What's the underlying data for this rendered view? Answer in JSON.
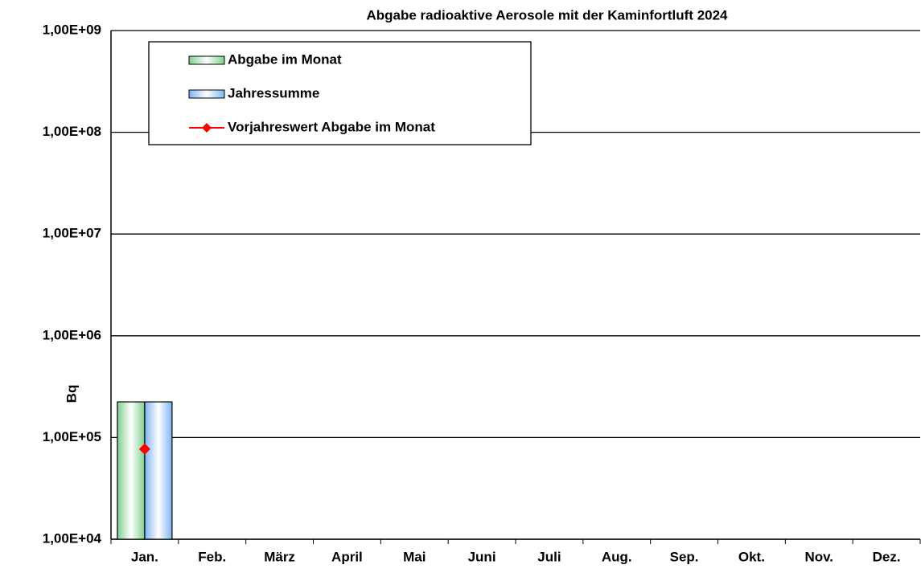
{
  "chart_data": {
    "type": "bar",
    "title": "Abgabe radioaktive Aerosole mit der Kaminfortluft 2024",
    "y_label": "Bq",
    "log_scale": true,
    "grid": true,
    "legend": "top-left",
    "categories": [
      "Jan.",
      "Feb.",
      "März",
      "April",
      "Mai",
      "Juni",
      "Juli",
      "Aug.",
      "Sep.",
      "Okt.",
      "Nov.",
      "Dez."
    ],
    "series": [
      {
        "name": "Abgabe im Monat",
        "type": "bar",
        "color": "#7fcf8f",
        "values": [
          224000,
          null,
          null,
          null,
          null,
          null,
          null,
          null,
          null,
          null,
          null,
          null
        ]
      },
      {
        "name": "Jahressumme",
        "type": "bar",
        "color": "#7fb4f0",
        "values": [
          224000,
          null,
          null,
          null,
          null,
          null,
          null,
          null,
          null,
          null,
          null,
          null
        ]
      },
      {
        "name": "Vorjahreswert Abgabe im Monat",
        "type": "line",
        "color": "#ff0000",
        "values": [
          77000,
          null,
          null,
          null,
          null,
          null,
          null,
          null,
          null,
          null,
          null,
          null
        ]
      }
    ],
    "ylim": [
      10000,
      1000000000
    ],
    "yticks": [
      {
        "value": 10000,
        "label": "1,00E+04"
      },
      {
        "value": 100000,
        "label": "1,00E+05"
      },
      {
        "value": 1000000,
        "label": "1,00E+06"
      },
      {
        "value": 10000000,
        "label": "1,00E+07"
      },
      {
        "value": 100000000,
        "label": "1,00E+08"
      },
      {
        "value": 1000000000,
        "label": "1,00E+09"
      }
    ]
  }
}
